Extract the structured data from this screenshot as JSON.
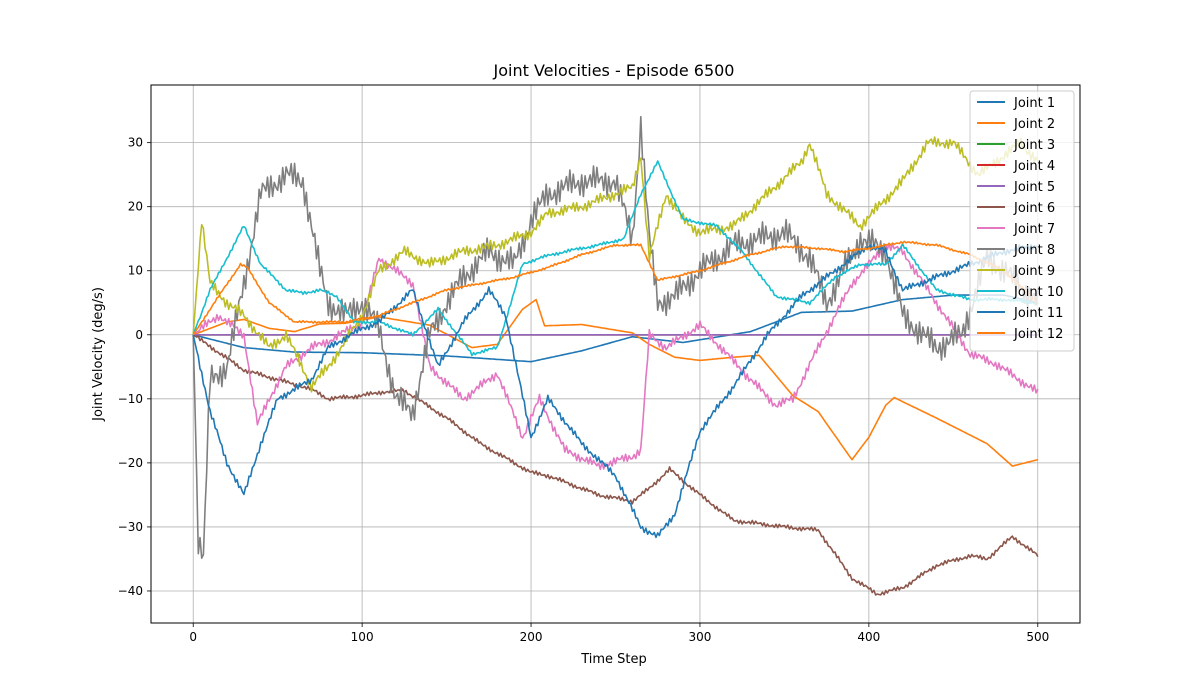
{
  "chart_data": {
    "type": "line",
    "title": "Joint Velocities - Episode 6500",
    "xlabel": "Time Step",
    "ylabel": "Joint Velocity (deg/s)",
    "xlim": [
      -25,
      525
    ],
    "ylim": [
      -45,
      39
    ],
    "xticks": [
      0,
      100,
      200,
      300,
      400,
      500
    ],
    "yticks": [
      -40,
      -30,
      -20,
      -10,
      0,
      10,
      20,
      30
    ],
    "grid": true,
    "legend_position": "top-right",
    "series": [
      {
        "name": "Joint 1",
        "color": "#1f77b4",
        "noise": 0,
        "x": [
          0,
          30,
          60,
          100,
          150,
          200,
          230,
          260,
          290,
          330,
          360,
          390,
          420,
          450,
          480,
          500
        ],
        "y": [
          0,
          -2,
          -2.7,
          -2.8,
          -3.3,
          -4.2,
          -2.5,
          -0.3,
          -1.2,
          0.5,
          3.5,
          3.7,
          5.5,
          6.2,
          6.2,
          5
        ]
      },
      {
        "name": "Joint 2",
        "color": "#ff7f0e",
        "noise": 0,
        "x": [
          0,
          20,
          30,
          45,
          60,
          75,
          90,
          110,
          140,
          165,
          180,
          195,
          203,
          208,
          230,
          260,
          270,
          285,
          300,
          320,
          335,
          355,
          370,
          390,
          400,
          410,
          415,
          440,
          470,
          485,
          500
        ],
        "y": [
          0,
          2,
          2.4,
          1,
          0.5,
          1.7,
          1.8,
          2.8,
          1.5,
          -2,
          -1.5,
          4,
          5.5,
          1.4,
          1.6,
          0.3,
          -1.5,
          -3.5,
          -4,
          -3.5,
          -3.2,
          -9.5,
          -12,
          -19.5,
          -16,
          -11,
          -9.8,
          -13,
          -17,
          -20.5,
          -19.5
        ]
      },
      {
        "name": "Joint 3",
        "color": "#2ca02c",
        "noise": 0,
        "x": [
          0,
          500
        ],
        "y": [
          0,
          0
        ]
      },
      {
        "name": "Joint 4",
        "color": "#d62728",
        "noise": 0,
        "x": [
          0,
          500
        ],
        "y": [
          0,
          0
        ]
      },
      {
        "name": "Joint 5",
        "color": "#9467bd",
        "noise": 0,
        "x": [
          0,
          500
        ],
        "y": [
          0,
          0
        ]
      },
      {
        "name": "Joint 6",
        "color": "#8c564b",
        "noise": 0.4,
        "x": [
          0,
          30,
          50,
          70,
          80,
          100,
          110,
          125,
          150,
          170,
          190,
          200,
          210,
          240,
          260,
          270,
          282,
          300,
          320,
          350,
          370,
          390,
          405,
          420,
          440,
          460,
          470,
          485,
          500
        ],
        "y": [
          0,
          -5.5,
          -7,
          -8.5,
          -10,
          -9.5,
          -9,
          -8.7,
          -13,
          -17,
          -20,
          -21.5,
          -22,
          -25,
          -26,
          -24,
          -21,
          -25,
          -29,
          -30,
          -30.5,
          -38,
          -40.5,
          -39.5,
          -36,
          -34.5,
          -35,
          -31.5,
          -34.5
        ]
      },
      {
        "name": "Joint 7",
        "color": "#e377c2",
        "noise": 0.8,
        "x": [
          0,
          15,
          30,
          38,
          45,
          55,
          70,
          80,
          100,
          110,
          120,
          130,
          140,
          160,
          180,
          195,
          205,
          220,
          240,
          260,
          265,
          270,
          280,
          300,
          330,
          345,
          355,
          370,
          390,
          410,
          420,
          440,
          460,
          475,
          500
        ],
        "y": [
          0,
          3,
          0,
          -14,
          -10,
          -5,
          -2,
          -1,
          2,
          12,
          10,
          8,
          -5,
          -10,
          -6,
          -16,
          -10,
          -18,
          -20.5,
          -19,
          -18,
          0,
          -2,
          1.5,
          -7,
          -11,
          -10,
          -2,
          8,
          14,
          13,
          5,
          -3,
          -4.5,
          -9
        ]
      },
      {
        "name": "Joint 8",
        "color": "#7f7f7f",
        "noise": 2.5,
        "x": [
          0,
          3,
          6,
          10,
          20,
          30,
          40,
          55,
          65,
          75,
          80,
          90,
          100,
          110,
          120,
          130,
          140,
          150,
          160,
          175,
          190,
          200,
          210,
          230,
          250,
          260,
          265,
          270,
          275,
          285,
          300,
          320,
          335,
          350,
          365,
          375,
          395,
          410,
          420,
          440,
          455,
          470,
          480,
          500
        ],
        "y": [
          0,
          -32,
          -35,
          -7,
          -5,
          8,
          22,
          25,
          24,
          10,
          5,
          3,
          5,
          1,
          -10,
          -12,
          0,
          5,
          9,
          13,
          11,
          18,
          22,
          24,
          24,
          15,
          33,
          15,
          5,
          6,
          10,
          14,
          15,
          16,
          12,
          5,
          15,
          13,
          3,
          -2,
          0,
          12,
          10,
          5
        ]
      },
      {
        "name": "Joint 9",
        "color": "#bcbd22",
        "noise": 1,
        "x": [
          0,
          5,
          10,
          20,
          30,
          45,
          55,
          70,
          80,
          100,
          110,
          125,
          140,
          160,
          180,
          200,
          210,
          230,
          250,
          260,
          265,
          270,
          280,
          290,
          300,
          320,
          340,
          360,
          365,
          370,
          375,
          395,
          420,
          435,
          450,
          465,
          480,
          490,
          500
        ],
        "y": [
          0,
          18,
          8,
          5,
          3,
          -2,
          0,
          -8,
          -5,
          3,
          10,
          13,
          11,
          13,
          14,
          16,
          19,
          20,
          22,
          23,
          28,
          12,
          22,
          18,
          16,
          17,
          22,
          27,
          30,
          26,
          22,
          17,
          24,
          30,
          30,
          25,
          28,
          30,
          27
        ]
      },
      {
        "name": "Joint 10",
        "color": "#17becf",
        "noise": 0.3,
        "x": [
          0,
          10,
          20,
          30,
          40,
          55,
          65,
          75,
          85,
          95,
          110,
          130,
          145,
          165,
          180,
          195,
          205,
          220,
          240,
          255,
          265,
          275,
          290,
          310,
          325,
          345,
          365,
          380,
          395,
          410,
          420,
          440,
          460,
          480,
          500
        ],
        "y": [
          0,
          7,
          12,
          17,
          11,
          7,
          6.5,
          7,
          6,
          2,
          2,
          0,
          4,
          -3,
          -2,
          11,
          12,
          13,
          14,
          15,
          22,
          27,
          18,
          17,
          13,
          6,
          5,
          9,
          11,
          11,
          14,
          7,
          5.5,
          5.5,
          5
        ]
      },
      {
        "name": "Joint 11",
        "color": "#1f77b4",
        "noise": 0.6,
        "x": [
          0,
          10,
          20,
          30,
          40,
          50,
          70,
          80,
          100,
          110,
          130,
          145,
          160,
          175,
          185,
          200,
          210,
          230,
          250,
          265,
          275,
          285,
          300,
          320,
          340,
          360,
          380,
          400,
          410,
          420,
          440,
          460,
          480,
          500
        ],
        "y": [
          0,
          -12,
          -20,
          -25,
          -17,
          -10,
          -7,
          -2,
          1,
          2,
          7,
          -5,
          2,
          7,
          3,
          -16,
          -10,
          -17,
          -22,
          -30,
          -31.5,
          -28,
          -15,
          -8,
          0,
          6,
          10,
          14,
          13,
          7,
          9,
          11,
          13,
          14
        ]
      },
      {
        "name": "Joint 12",
        "color": "#ff7f0e",
        "noise": 0.2,
        "x": [
          0,
          15,
          28,
          32,
          45,
          60,
          75,
          90,
          100,
          110,
          130,
          150,
          170,
          190,
          210,
          230,
          250,
          265,
          275,
          300,
          330,
          350,
          370,
          385,
          400,
          420,
          440,
          460,
          480,
          500
        ],
        "y": [
          0,
          6,
          11,
          10.5,
          5,
          2,
          2,
          2,
          2.5,
          3,
          5,
          7,
          8,
          9,
          10.5,
          12.5,
          14,
          14,
          8.5,
          10,
          12.5,
          13.8,
          13.5,
          13,
          13.5,
          14.5,
          14,
          12.5,
          10,
          5
        ]
      }
    ]
  }
}
